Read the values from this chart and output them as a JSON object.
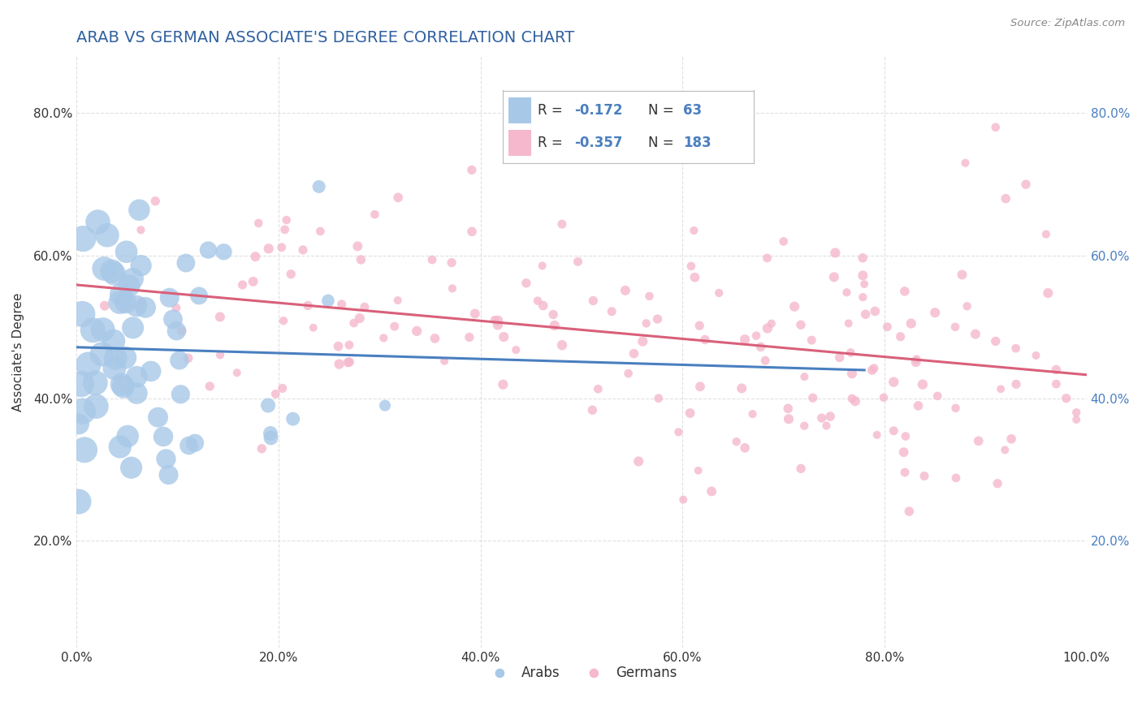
{
  "title": "ARAB VS GERMAN ASSOCIATE'S DEGREE CORRELATION CHART",
  "source_text": "Source: ZipAtlas.com",
  "ylabel": "Associate's Degree",
  "arab_R": -0.172,
  "arab_N": 63,
  "german_R": -0.357,
  "german_N": 183,
  "arab_color": "#a8c8e8",
  "german_color": "#f5b8cc",
  "arab_line_color": "#4a7fc0",
  "german_line_color": "#d9607a",
  "title_color": "#3060a0",
  "background_color": "#ffffff",
  "grid_color": "#cccccc",
  "xlim": [
    0.0,
    1.0
  ],
  "ylim": [
    0.05,
    0.88
  ],
  "xticks": [
    0.0,
    0.2,
    0.4,
    0.6,
    0.8,
    1.0
  ],
  "yticks": [
    0.2,
    0.4,
    0.6,
    0.8
  ]
}
